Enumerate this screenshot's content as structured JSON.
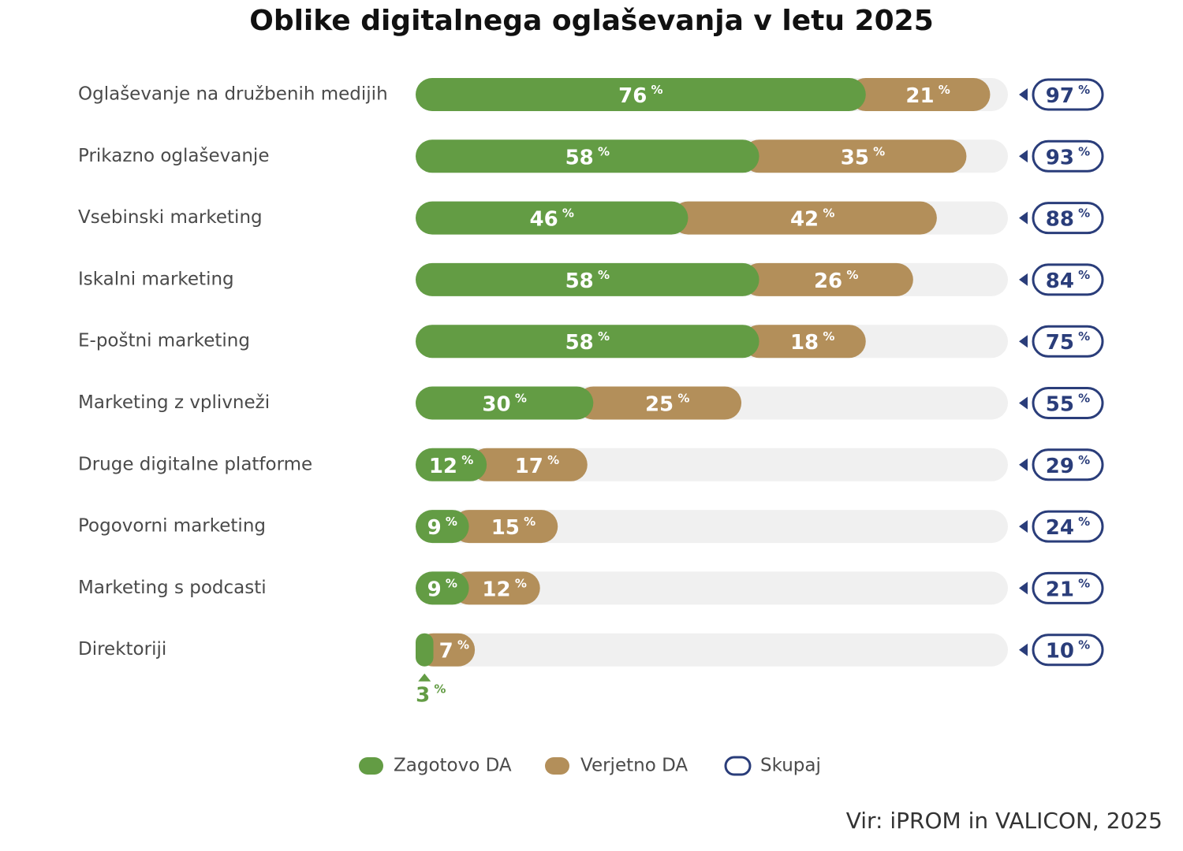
{
  "chart_data": {
    "type": "stacked-bar",
    "orientation": "horizontal",
    "title": "Oblike digitalnega oglaševanja v letu 2025",
    "source": "Vir: iPROM in VALICON, 2025",
    "categories": [
      "Oglaševanje na družbenih medijih",
      "Prikazno oglaševanje",
      "Vsebinski marketing",
      "Iskalni marketing",
      "E-poštni marketing",
      "Marketing z vplivneži",
      "Druge digitalne platforme",
      "Pogovorni marketing",
      "Marketing s podcasti",
      "Direktoriji"
    ],
    "series": [
      {
        "name": "Zagotovo DA",
        "color": "#639c44",
        "values": [
          76,
          58,
          46,
          58,
          58,
          30,
          12,
          9,
          9,
          3
        ],
        "value_labels": [
          "76 %",
          "58 %",
          "46 %",
          "58 %",
          "58 %",
          "30 %",
          "12 %",
          "9 %",
          "9 %",
          "3 %"
        ]
      },
      {
        "name": "Verjetno DA",
        "color": "#b38f5a",
        "values": [
          21,
          35,
          42,
          26,
          18,
          25,
          17,
          15,
          12,
          7
        ],
        "value_labels": [
          "21 %",
          "35 %",
          "42 %",
          "26 %",
          "18 %",
          "25 %",
          "17 %",
          "15 %",
          "12 %",
          "7 %"
        ]
      }
    ],
    "totals": {
      "name": "Skupaj",
      "color": "#2a3d7a",
      "values": [
        97,
        93,
        88,
        84,
        75,
        55,
        29,
        24,
        21,
        10
      ],
      "value_labels": [
        "97 %",
        "93 %",
        "88 %",
        "84 %",
        "75 %",
        "55 %",
        "29 %",
        "24 %",
        "21 %",
        "10 %"
      ]
    },
    "xlim": [
      0,
      100
    ],
    "track_color": "#f0f0f0"
  }
}
